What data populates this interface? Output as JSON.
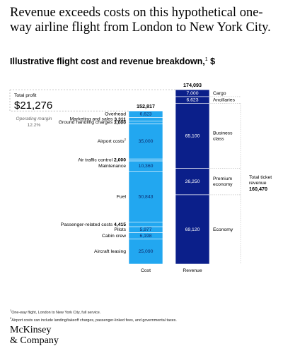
{
  "header": {
    "title": "Revenue exceeds costs on this hypothetical one-way airline flight from London to New York City.",
    "subtitle": "Illustrative flight cost and revenue breakdown,",
    "subtitle_note": "1",
    "subtitle_unit": "$"
  },
  "chart_data": {
    "type": "bar",
    "stacked": true,
    "categories": [
      "Cost",
      "Revenue"
    ],
    "totals": {
      "Cost": "152,817",
      "Revenue": "174,093"
    },
    "series": [
      {
        "stack": "Cost",
        "color": "#22a7f0",
        "segments": [
          {
            "label": "Overhead",
            "value": 6623,
            "display": "6,623",
            "label_bold": false
          },
          {
            "label": "Marketing and sales",
            "value": 3311,
            "display": "3,311",
            "label_bold": false,
            "value_outside": true
          },
          {
            "label": "Ground handling charges",
            "value": 3000,
            "display": "3,000",
            "label_bold": false,
            "value_outside": true
          },
          {
            "label": "Airport costs",
            "note": "2",
            "value": 35000,
            "display": "35,000",
            "label_bold": false
          },
          {
            "label": "Air traffic control",
            "value": 2000,
            "display": "2,000",
            "label_bold": false,
            "value_outside": true
          },
          {
            "label": "Maintenance",
            "value": 10360,
            "display": "10,360",
            "label_bold": false
          },
          {
            "label": "Fuel",
            "value": 50843,
            "display": "50,843",
            "label_bold": false
          },
          {
            "label": "Passenger-related costs",
            "value": 4415,
            "display": "4,415",
            "label_bold": false,
            "value_outside": true
          },
          {
            "label": "Pilots",
            "value": 5977,
            "display": "5,977",
            "label_bold": false
          },
          {
            "label": "Cabin crew",
            "value": 6198,
            "display": "6,198",
            "label_bold": false
          },
          {
            "label": "Aircraft leasing",
            "value": 25090,
            "display": "25,090",
            "label_bold": false
          }
        ]
      },
      {
        "stack": "Revenue",
        "color": "#0b1f8a",
        "segments": [
          {
            "label": "Cargo",
            "value": 7000,
            "display": "7,000"
          },
          {
            "label": "Ancillaries",
            "value": 6623,
            "display": "6,623"
          },
          {
            "label": "Business class",
            "value": 65100,
            "display": "65,100"
          },
          {
            "label": "Premium economy",
            "value": 26250,
            "display": "26,250"
          },
          {
            "label": "Economy",
            "value": 69120,
            "display": "69,120"
          }
        ]
      }
    ],
    "profit": {
      "label": "Total profit",
      "value": "$21,276",
      "margin_label": "Operating margin",
      "margin_value": "12.2%"
    },
    "ticket_revenue": {
      "label": "Total ticket revenue",
      "value": "160,470"
    }
  },
  "footnotes": [
    {
      "mark": "1",
      "text": "One-way flight, London to New York City, full service."
    },
    {
      "mark": "2",
      "text": "Airport costs can include landing/takeoff charges, passenger-linked fees, and governmental taxes."
    }
  ],
  "brand": {
    "line1": "McKinsey",
    "line2": "& Company"
  }
}
